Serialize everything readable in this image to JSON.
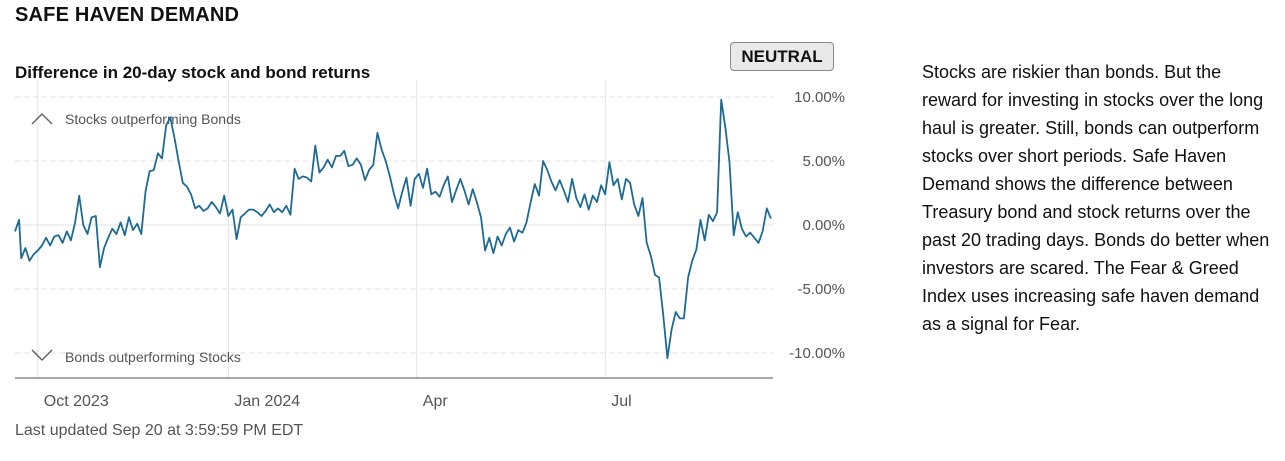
{
  "header": {
    "title": "SAFE HAVEN DEMAND",
    "subtitle": "Difference in 20-day stock and bond returns",
    "status": "NEUTRAL"
  },
  "footer": {
    "updated": "Last updated Sep 20 at 3:59:59 PM EDT"
  },
  "description": "Stocks are riskier than bonds. But the reward for investing in stocks over the long haul is greater. Still, bonds can outperform stocks over short periods. Safe Haven Demand shows the difference between Treasury bond and stock returns over the past 20 trading days. Bonds do better when investors are scared. The Fear & Greed Index uses increasing safe haven demand as a signal for Fear.",
  "colors": {
    "line": "#1f6a93",
    "grid": "#e2e2e2",
    "axis": "#8a8a8a",
    "text": "#555555"
  },
  "chart_data": {
    "type": "line",
    "title": "Difference in 20-day stock and bond returns",
    "ylim": [
      -12,
      10
    ],
    "yticks": [
      {
        "value": 10,
        "label": "10.00%"
      },
      {
        "value": 5,
        "label": "5.00%"
      },
      {
        "value": 0,
        "label": "0.00%"
      },
      {
        "value": -5,
        "label": "-5.00%"
      },
      {
        "value": -10,
        "label": "-10.00%"
      }
    ],
    "xlim": [
      "2023-09-20",
      "2024-09-20"
    ],
    "xticks": [
      {
        "date": "2023-10-01",
        "label": "Oct 2023"
      },
      {
        "date": "2024-01-01",
        "label": "Jan 2024"
      },
      {
        "date": "2024-04-01",
        "label": "Apr"
      },
      {
        "date": "2024-07-01",
        "label": "Jul"
      }
    ],
    "annotations": {
      "top": "Stocks outperforming Bonds",
      "bottom": "Bonds outperforming Stocks"
    },
    "grid": true,
    "legend": "none",
    "series": [
      {
        "points": [
          [
            "2023-09-20",
            -0.5
          ],
          [
            "2023-09-22",
            0.4
          ],
          [
            "2023-09-23",
            -2.6
          ],
          [
            "2023-09-25",
            -1.8
          ],
          [
            "2023-09-27",
            -2.8
          ],
          [
            "2023-09-29",
            -2.3
          ],
          [
            "2023-10-01",
            -2.0
          ],
          [
            "2023-10-03",
            -1.6
          ],
          [
            "2023-10-05",
            -1.0
          ],
          [
            "2023-10-07",
            -1.6
          ],
          [
            "2023-10-09",
            -0.9
          ],
          [
            "2023-10-11",
            -0.8
          ],
          [
            "2023-10-13",
            -1.4
          ],
          [
            "2023-10-15",
            -0.5
          ],
          [
            "2023-10-17",
            -1.2
          ],
          [
            "2023-10-19",
            0.2
          ],
          [
            "2023-10-21",
            2.3
          ],
          [
            "2023-10-23",
            0.0
          ],
          [
            "2023-10-25",
            -0.7
          ],
          [
            "2023-10-27",
            0.6
          ],
          [
            "2023-10-29",
            0.7
          ],
          [
            "2023-10-31",
            -3.3
          ],
          [
            "2023-11-02",
            -1.8
          ],
          [
            "2023-11-04",
            -1.0
          ],
          [
            "2023-11-06",
            -0.3
          ],
          [
            "2023-11-08",
            -0.7
          ],
          [
            "2023-11-10",
            0.2
          ],
          [
            "2023-11-12",
            -0.8
          ],
          [
            "2023-11-14",
            0.6
          ],
          [
            "2023-11-16",
            -0.4
          ],
          [
            "2023-11-18",
            0.1
          ],
          [
            "2023-11-20",
            -0.7
          ],
          [
            "2023-11-22",
            2.6
          ],
          [
            "2023-11-24",
            4.2
          ],
          [
            "2023-11-26",
            4.3
          ],
          [
            "2023-11-28",
            5.6
          ],
          [
            "2023-11-30",
            5.2
          ],
          [
            "2023-12-02",
            7.8
          ],
          [
            "2023-12-04",
            8.4
          ],
          [
            "2023-12-06",
            6.8
          ],
          [
            "2023-12-08",
            5.0
          ],
          [
            "2023-12-10",
            3.3
          ],
          [
            "2023-12-12",
            3.0
          ],
          [
            "2023-12-14",
            2.4
          ],
          [
            "2023-12-16",
            1.3
          ],
          [
            "2023-12-18",
            1.5
          ],
          [
            "2023-12-20",
            1.1
          ],
          [
            "2023-12-22",
            1.3
          ],
          [
            "2023-12-24",
            1.8
          ],
          [
            "2023-12-26",
            1.4
          ],
          [
            "2023-12-28",
            0.9
          ],
          [
            "2023-12-30",
            2.3
          ],
          [
            "2024-01-01",
            0.7
          ],
          [
            "2024-01-03",
            1.2
          ],
          [
            "2024-01-05",
            -1.1
          ],
          [
            "2024-01-07",
            0.6
          ],
          [
            "2024-01-09",
            0.9
          ],
          [
            "2024-01-11",
            1.2
          ],
          [
            "2024-01-13",
            1.2
          ],
          [
            "2024-01-15",
            1.0
          ],
          [
            "2024-01-17",
            0.7
          ],
          [
            "2024-01-19",
            1.1
          ],
          [
            "2024-01-21",
            1.6
          ],
          [
            "2024-01-23",
            1.0
          ],
          [
            "2024-01-25",
            1.3
          ],
          [
            "2024-01-27",
            1.0
          ],
          [
            "2024-01-29",
            1.5
          ],
          [
            "2024-01-31",
            0.8
          ],
          [
            "2024-02-02",
            4.4
          ],
          [
            "2024-02-04",
            3.6
          ],
          [
            "2024-02-06",
            3.8
          ],
          [
            "2024-02-08",
            3.7
          ],
          [
            "2024-02-10",
            3.4
          ],
          [
            "2024-02-12",
            6.2
          ],
          [
            "2024-02-14",
            4.1
          ],
          [
            "2024-02-16",
            4.5
          ],
          [
            "2024-02-18",
            5.1
          ],
          [
            "2024-02-20",
            4.5
          ],
          [
            "2024-02-22",
            5.4
          ],
          [
            "2024-02-24",
            5.4
          ],
          [
            "2024-02-26",
            5.8
          ],
          [
            "2024-02-28",
            4.6
          ],
          [
            "2024-03-01",
            4.7
          ],
          [
            "2024-03-03",
            5.2
          ],
          [
            "2024-03-05",
            4.7
          ],
          [
            "2024-03-07",
            3.5
          ],
          [
            "2024-03-09",
            4.3
          ],
          [
            "2024-03-11",
            4.7
          ],
          [
            "2024-03-13",
            7.2
          ],
          [
            "2024-03-15",
            5.9
          ],
          [
            "2024-03-17",
            5.0
          ],
          [
            "2024-03-19",
            3.8
          ],
          [
            "2024-03-21",
            2.4
          ],
          [
            "2024-03-23",
            1.3
          ],
          [
            "2024-03-25",
            2.6
          ],
          [
            "2024-03-27",
            3.7
          ],
          [
            "2024-03-29",
            1.5
          ],
          [
            "2024-03-31",
            3.6
          ],
          [
            "2024-04-02",
            4.0
          ],
          [
            "2024-04-04",
            2.9
          ],
          [
            "2024-04-06",
            4.4
          ],
          [
            "2024-04-08",
            2.4
          ],
          [
            "2024-04-10",
            2.6
          ],
          [
            "2024-04-12",
            2.2
          ],
          [
            "2024-04-14",
            3.1
          ],
          [
            "2024-04-16",
            3.8
          ],
          [
            "2024-04-18",
            1.8
          ],
          [
            "2024-04-20",
            2.7
          ],
          [
            "2024-04-22",
            3.6
          ],
          [
            "2024-04-24",
            2.7
          ],
          [
            "2024-04-26",
            1.6
          ],
          [
            "2024-04-28",
            2.8
          ],
          [
            "2024-04-30",
            1.8
          ],
          [
            "2024-05-02",
            0.6
          ],
          [
            "2024-05-04",
            -2.0
          ],
          [
            "2024-05-06",
            -1.0
          ],
          [
            "2024-05-08",
            -2.2
          ],
          [
            "2024-05-10",
            -0.9
          ],
          [
            "2024-05-12",
            -1.6
          ],
          [
            "2024-05-14",
            -0.7
          ],
          [
            "2024-05-16",
            -0.2
          ],
          [
            "2024-05-18",
            -1.3
          ],
          [
            "2024-05-20",
            -0.4
          ],
          [
            "2024-05-22",
            -0.6
          ],
          [
            "2024-05-24",
            0.2
          ],
          [
            "2024-05-26",
            1.8
          ],
          [
            "2024-05-28",
            3.2
          ],
          [
            "2024-05-30",
            2.3
          ],
          [
            "2024-06-01",
            5.0
          ],
          [
            "2024-06-03",
            4.3
          ],
          [
            "2024-06-05",
            3.4
          ],
          [
            "2024-06-07",
            2.7
          ],
          [
            "2024-06-09",
            3.5
          ],
          [
            "2024-06-11",
            2.7
          ],
          [
            "2024-06-13",
            1.8
          ],
          [
            "2024-06-15",
            3.6
          ],
          [
            "2024-06-17",
            2.1
          ],
          [
            "2024-06-19",
            1.4
          ],
          [
            "2024-06-21",
            2.4
          ],
          [
            "2024-06-23",
            1.2
          ],
          [
            "2024-06-25",
            2.3
          ],
          [
            "2024-06-27",
            1.8
          ],
          [
            "2024-06-29",
            3.1
          ],
          [
            "2024-07-01",
            2.4
          ],
          [
            "2024-07-03",
            4.9
          ],
          [
            "2024-07-05",
            3.1
          ],
          [
            "2024-07-07",
            3.6
          ],
          [
            "2024-07-09",
            2.0
          ],
          [
            "2024-07-11",
            3.6
          ],
          [
            "2024-07-13",
            3.3
          ],
          [
            "2024-07-15",
            1.6
          ],
          [
            "2024-07-17",
            0.7
          ],
          [
            "2024-07-19",
            2.1
          ],
          [
            "2024-07-21",
            -1.4
          ],
          [
            "2024-07-23",
            -2.4
          ],
          [
            "2024-07-25",
            -3.9
          ],
          [
            "2024-07-27",
            -4.1
          ],
          [
            "2024-07-29",
            -7.0
          ],
          [
            "2024-07-31",
            -10.4
          ],
          [
            "2024-08-02",
            -8.2
          ],
          [
            "2024-08-04",
            -6.8
          ],
          [
            "2024-08-06",
            -7.3
          ],
          [
            "2024-08-08",
            -7.3
          ],
          [
            "2024-08-10",
            -4.1
          ],
          [
            "2024-08-12",
            -2.8
          ],
          [
            "2024-08-14",
            -1.9
          ],
          [
            "2024-08-16",
            0.4
          ],
          [
            "2024-08-18",
            -1.2
          ],
          [
            "2024-08-20",
            0.8
          ],
          [
            "2024-08-22",
            0.3
          ],
          [
            "2024-08-24",
            1.0
          ],
          [
            "2024-08-26",
            9.8
          ],
          [
            "2024-08-28",
            7.6
          ],
          [
            "2024-08-30",
            4.9
          ],
          [
            "2024-09-01",
            -0.8
          ],
          [
            "2024-09-03",
            1.0
          ],
          [
            "2024-09-05",
            -0.3
          ],
          [
            "2024-09-07",
            -0.9
          ],
          [
            "2024-09-09",
            -0.6
          ],
          [
            "2024-09-11",
            -1.0
          ],
          [
            "2024-09-13",
            -1.4
          ],
          [
            "2024-09-15",
            -0.5
          ],
          [
            "2024-09-17",
            1.3
          ],
          [
            "2024-09-19",
            0.5
          ]
        ]
      }
    ]
  }
}
